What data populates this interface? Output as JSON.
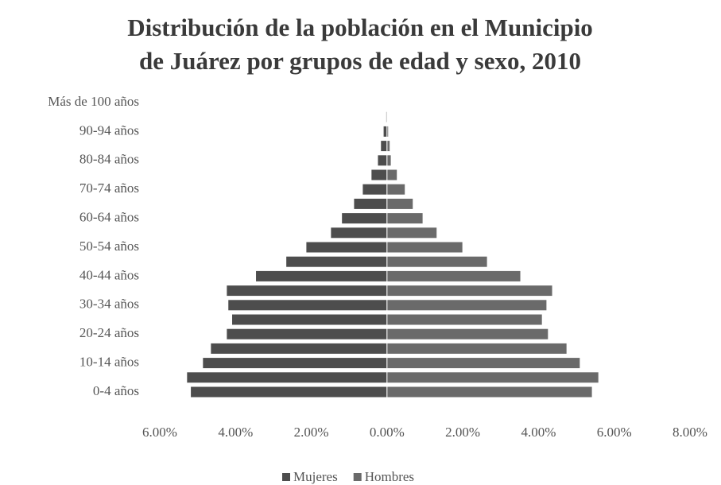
{
  "chart_data": {
    "type": "pyramid",
    "title": [
      "Distribución de la población en el Municipio",
      "de Juárez por grupos de edad y sexo, 2010"
    ],
    "categories": [
      "0-4 años",
      null,
      "10-14 años",
      null,
      "20-24 años",
      null,
      "30-34 años",
      null,
      "40-44 años",
      null,
      "50-54 años",
      null,
      "60-64 años",
      null,
      "70-74 años",
      null,
      "80-84 años",
      null,
      "90-94 años",
      null,
      "Más de 100 años"
    ],
    "series": [
      {
        "name": "Mujeres",
        "color": "#4d4d4d",
        "values": [
          -5.19,
          -5.29,
          -4.87,
          -4.66,
          -4.24,
          -4.1,
          -4.2,
          -4.24,
          -3.47,
          -2.67,
          -2.14,
          -1.49,
          -1.2,
          -0.88,
          -0.65,
          -0.42,
          -0.25,
          -0.17,
          -0.1,
          -0.03,
          -0.01
        ]
      },
      {
        "name": "Hombres",
        "color": "#6a6a6a",
        "values": [
          5.42,
          5.59,
          5.1,
          4.75,
          4.26,
          4.1,
          4.22,
          4.37,
          3.53,
          2.65,
          2.0,
          1.32,
          0.95,
          0.69,
          0.48,
          0.27,
          0.11,
          0.08,
          0.04,
          0.01,
          0.005
        ]
      }
    ],
    "xlim": [
      -6,
      8
    ],
    "xticks": [
      {
        "value": -6,
        "label": "6.00%"
      },
      {
        "value": -4,
        "label": "4.00%"
      },
      {
        "value": -2,
        "label": "2.00%"
      },
      {
        "value": 0,
        "label": "0.00%"
      },
      {
        "value": 2,
        "label": "2.00%"
      },
      {
        "value": 4,
        "label": "4.00%"
      },
      {
        "value": 6,
        "label": "6.00%"
      },
      {
        "value": 8,
        "label": "8.00%"
      }
    ],
    "legend": "bottom"
  }
}
